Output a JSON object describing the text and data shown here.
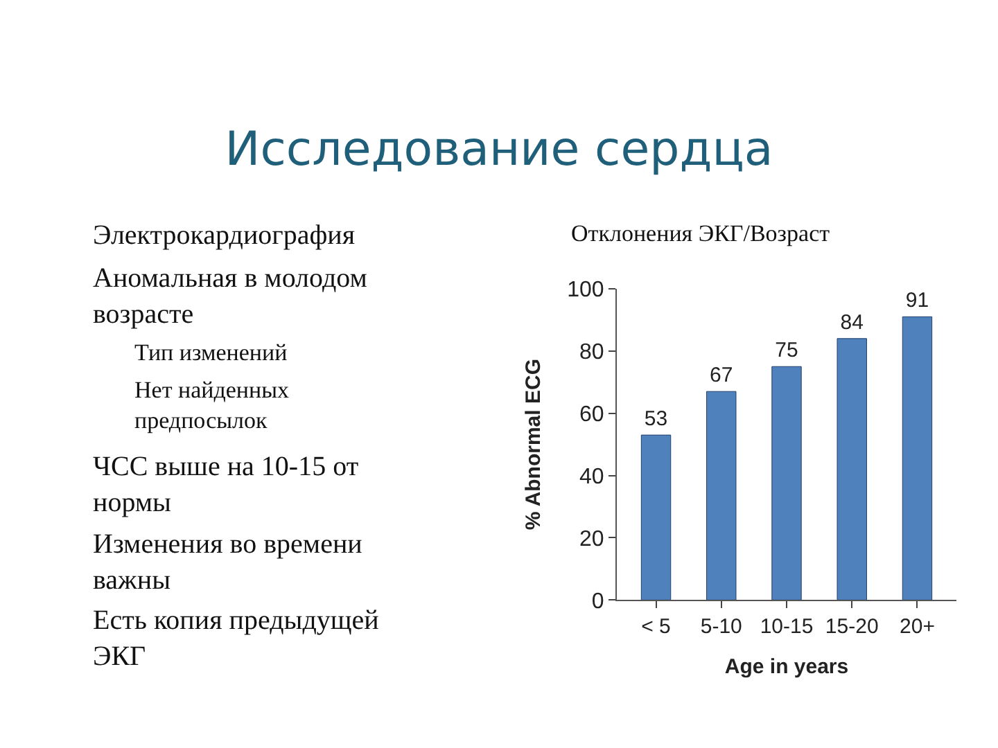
{
  "chart_data": {
    "type": "bar",
    "title": "Исследование сердца",
    "categories": [
      "< 5",
      "5-10",
      "10-15",
      "15-20",
      "20+"
    ],
    "values": [
      53,
      67,
      75,
      84,
      91
    ],
    "color": "#4f81bd",
    "ylim": [
      0,
      100
    ],
    "yticks": [
      0,
      20,
      40,
      60,
      80,
      100
    ],
    "xlabel": "Age in years",
    "ylabel": "% Abnormal ECG",
    "data_labels": true,
    "annotations": [
      "Электрокардиография",
      "Аномальная в молодом возрасте",
      "Тип изменений",
      "Нет найденных предпосылок",
      "ЧСС выше на 10-15 от нормы",
      "Изменения во времени важны",
      "Есть копия предыдущей ЭКГ",
      "Отклонения ЭКГ/Возраст"
    ]
  }
}
